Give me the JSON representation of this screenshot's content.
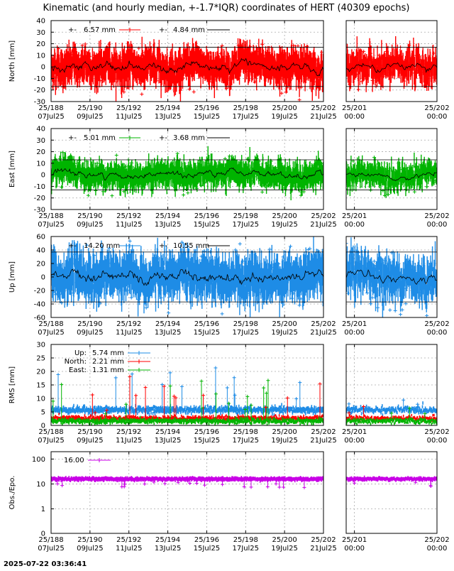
{
  "title": "Kinematic (and hourly median, +-1.7*IQR) coordinates of HERT (40309 epochs)",
  "timestamp": "2025-07-22 03:36:41",
  "colors": {
    "north": "#ff0000",
    "east": "#00b400",
    "up": "#1e8ce6",
    "obs": "#c800e6",
    "median": "#000000"
  },
  "chart_data": [
    {
      "id": "north",
      "type": "scatter",
      "ylabel": "North [mm]",
      "ylim": [
        -30,
        40
      ],
      "yticks": [
        "40",
        "30",
        "20",
        "10",
        "0",
        "-10",
        "-20",
        "-30"
      ],
      "yvals": [
        40,
        30,
        20,
        10,
        0,
        -10,
        -20,
        -30
      ],
      "band": [
        17,
        -17
      ],
      "legend": [
        {
          "label": "6.57 mm",
          "series": "kinematic"
        },
        {
          "label": "4.84 mm",
          "series": "median"
        }
      ],
      "spread": 6.57,
      "grid": true
    },
    {
      "id": "east",
      "type": "scatter",
      "ylabel": "East [mm]",
      "ylim": [
        -30,
        40
      ],
      "yticks": [
        "40",
        "30",
        "20",
        "10",
        "0",
        "-10",
        "-20",
        "-30"
      ],
      "yvals": [
        40,
        30,
        20,
        10,
        0,
        -10,
        -20,
        -30
      ],
      "band": [
        13,
        -13
      ],
      "legend": [
        {
          "label": "5.01 mm",
          "series": "kinematic"
        },
        {
          "label": "3.68 mm",
          "series": "median"
        }
      ],
      "spread": 5.01,
      "grid": true
    },
    {
      "id": "up",
      "type": "scatter",
      "ylabel": "Up [mm]",
      "ylim": [
        -60,
        60
      ],
      "yticks": [
        "60",
        "40",
        "20",
        "0",
        "-20",
        "-40",
        "-60"
      ],
      "yvals": [
        60,
        40,
        20,
        0,
        -20,
        -40,
        -60
      ],
      "band": [
        37,
        -37
      ],
      "legend": [
        {
          "label": "14.20 mm",
          "series": "kinematic"
        },
        {
          "label": "10.55 mm",
          "series": "median"
        }
      ],
      "spread": 14.2,
      "grid": true
    },
    {
      "id": "rms",
      "type": "scatter",
      "ylabel": "RMS [mm]",
      "ylim": [
        0,
        30
      ],
      "yticks": [
        "30",
        "25",
        "20",
        "15",
        "10",
        "5",
        "0"
      ],
      "yvals": [
        30,
        25,
        20,
        15,
        10,
        5,
        0
      ],
      "legend": [
        {
          "name": "Up:",
          "label": "5.74 mm",
          "series": "up"
        },
        {
          "name": "North:",
          "label": "2.21 mm",
          "series": "north"
        },
        {
          "name": "East:",
          "label": "1.31 mm",
          "series": "east"
        }
      ],
      "grid": true
    },
    {
      "id": "obs",
      "type": "scatter",
      "ylabel": "Obs./Epo.",
      "scale": "log",
      "yticks": [
        "100",
        "10",
        "1",
        "0"
      ],
      "legend": [
        {
          "label": "16.00",
          "series": "obs"
        }
      ],
      "level": 16,
      "grid": true
    }
  ],
  "xaxis_main": {
    "xlim": [
      188,
      202
    ],
    "ticks": [
      {
        "x": 188,
        "top": "25/188",
        "bottom": "07Jul25"
      },
      {
        "x": 190,
        "top": "25/190",
        "bottom": "09Jul25"
      },
      {
        "x": 192,
        "top": "25/192",
        "bottom": "11Jul25"
      },
      {
        "x": 194,
        "top": "25/194",
        "bottom": "13Jul25"
      },
      {
        "x": 196,
        "top": "25/196",
        "bottom": "15Jul25"
      },
      {
        "x": 198,
        "top": "25/198",
        "bottom": "17Jul25"
      },
      {
        "x": 200,
        "top": "25/200",
        "bottom": "19Jul25"
      },
      {
        "x": 202,
        "top": "25/202",
        "bottom": "21Jul25"
      }
    ]
  },
  "xaxis_zoom": {
    "xlim": [
      200.9,
      202
    ],
    "ticks": [
      {
        "x": 201,
        "top": "25/201",
        "bottom": "00:00"
      },
      {
        "x": 202,
        "top": "25/202",
        "bottom": "00:00"
      }
    ]
  }
}
